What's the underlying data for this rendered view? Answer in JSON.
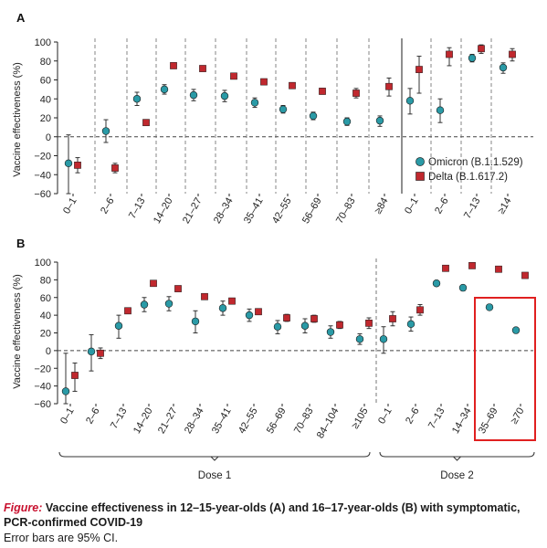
{
  "colors": {
    "omicron": "#2a9aa6",
    "delta": "#c0282e",
    "highlight": "#e02020",
    "axis": "#222222"
  },
  "legend": {
    "omicron": "Omicron (B.1.1.529)",
    "delta": "Delta (B.1.617.2)"
  },
  "caption": {
    "label": "Figure",
    "title": "Vaccine effectiveness in 12–15-year-olds (A) and 16–17-year-olds (B) with symptomatic, PCR-confirmed COVID-19",
    "note": "Error bars are 95% CI."
  },
  "chart_data": [
    {
      "type": "scatter",
      "panel": "A",
      "ylabel": "Vaccine effectiveness (%)",
      "ylim": [
        -60,
        100
      ],
      "yticks": [
        -60,
        -40,
        -20,
        0,
        20,
        40,
        60,
        80,
        100
      ],
      "grid": false,
      "legend_position": "bottom-right",
      "categories": [
        "0–1",
        "2–6",
        "7–13",
        "14–20",
        "21–27",
        "28–34",
        "35–41",
        "42–55",
        "56–69",
        "70–83",
        "≥84",
        "0–1",
        "2–6",
        "7–13",
        "≥14"
      ],
      "groups": [
        {
          "label": "",
          "from": 0,
          "to": 10
        },
        {
          "label": "",
          "from": 11,
          "to": 14
        }
      ],
      "series": [
        {
          "name": "Omicron (B.1.1.529)",
          "values": [
            -28,
            6,
            40,
            50,
            44,
            43,
            36,
            29,
            22,
            16,
            17,
            38,
            28,
            83,
            73
          ],
          "ci_low": [
            -60,
            -6,
            33,
            45,
            38,
            37,
            31,
            25,
            18,
            12,
            11,
            24,
            15,
            79,
            67
          ],
          "ci_high": [
            2,
            18,
            47,
            55,
            50,
            49,
            41,
            33,
            26,
            20,
            22,
            51,
            40,
            87,
            78
          ]
        },
        {
          "name": "Delta (B.1.617.2)",
          "values": [
            -30,
            -33,
            15,
            75,
            72,
            64,
            58,
            54,
            48,
            46,
            53,
            71,
            87,
            93,
            87
          ],
          "ci_low": [
            -38,
            -38,
            12,
            73,
            70,
            62,
            56,
            51,
            45,
            41,
            43,
            46,
            75,
            88,
            80
          ],
          "ci_high": [
            -22,
            -28,
            18,
            77,
            74,
            66,
            60,
            57,
            51,
            51,
            62,
            85,
            94,
            97,
            93
          ]
        }
      ]
    },
    {
      "type": "scatter",
      "panel": "B",
      "ylabel": "Vaccine effectiveness (%)",
      "ylim": [
        -60,
        100
      ],
      "yticks": [
        -60,
        -40,
        -20,
        0,
        20,
        40,
        60,
        80,
        100
      ],
      "grid": false,
      "categories": [
        "0–1",
        "2–6",
        "7–13",
        "14–20",
        "21–27",
        "28–34",
        "35–41",
        "42–55",
        "56–69",
        "70–83",
        "84–104",
        "≥105",
        "0–1",
        "2–6",
        "7–13",
        "14–34",
        "35–69",
        "≥70"
      ],
      "groups": [
        {
          "label": "Dose 1",
          "from": 0,
          "to": 11
        },
        {
          "label": "Dose 2",
          "from": 12,
          "to": 17
        }
      ],
      "highlight_categories": [
        "35–69",
        "≥70"
      ],
      "series": [
        {
          "name": "Omicron (B.1.1.529)",
          "values": [
            -46,
            -1,
            28,
            52,
            53,
            33,
            48,
            40,
            27,
            28,
            21,
            13,
            13,
            30,
            76,
            71,
            49,
            23
          ],
          "ci_low": [
            -60,
            -23,
            14,
            44,
            45,
            20,
            40,
            33,
            19,
            20,
            14,
            7,
            -3,
            22,
            null,
            null,
            null,
            null
          ],
          "ci_high": [
            -3,
            18,
            40,
            60,
            61,
            45,
            56,
            47,
            34,
            36,
            28,
            19,
            27,
            38,
            null,
            null,
            null,
            null
          ]
        },
        {
          "name": "Delta (B.1.617.2)",
          "values": [
            -28,
            -3,
            45,
            76,
            70,
            61,
            56,
            44,
            37,
            36,
            29,
            31,
            36,
            46,
            93,
            96,
            92,
            85
          ],
          "ci_low": [
            -46,
            -9,
            42,
            74,
            68,
            59,
            53,
            41,
            33,
            32,
            25,
            25,
            28,
            40,
            null,
            null,
            null,
            null
          ],
          "ci_high": [
            -14,
            3,
            48,
            78,
            72,
            63,
            59,
            47,
            41,
            40,
            33,
            37,
            44,
            52,
            null,
            null,
            null,
            null
          ]
        }
      ]
    }
  ]
}
